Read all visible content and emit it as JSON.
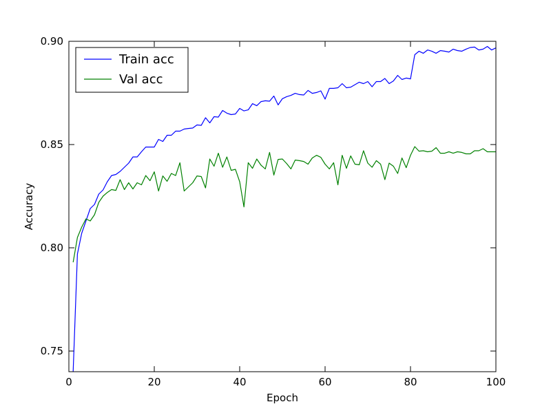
{
  "chart_data": {
    "type": "line",
    "title": "",
    "xlabel": "Epoch",
    "ylabel": "Accuracy",
    "xlim": [
      0,
      100
    ],
    "ylim": [
      0.74,
      0.9
    ],
    "xticks": [
      0,
      20,
      40,
      60,
      80,
      100
    ],
    "yticks": [
      0.75,
      0.8,
      0.85,
      0.9
    ],
    "xtick_labels": [
      "0",
      "20",
      "40",
      "60",
      "80",
      "100"
    ],
    "ytick_labels": [
      "0.75",
      "0.80",
      "0.85",
      "0.90"
    ],
    "grid": false,
    "legend": "top-left",
    "x": [
      1,
      2,
      3,
      4,
      5,
      6,
      7,
      8,
      9,
      10,
      11,
      12,
      13,
      14,
      15,
      16,
      17,
      18,
      19,
      20,
      21,
      22,
      23,
      24,
      25,
      26,
      27,
      28,
      29,
      30,
      31,
      32,
      33,
      34,
      35,
      36,
      37,
      38,
      39,
      40,
      41,
      42,
      43,
      44,
      45,
      46,
      47,
      48,
      49,
      50,
      51,
      52,
      53,
      54,
      55,
      56,
      57,
      58,
      59,
      60,
      61,
      62,
      63,
      64,
      65,
      66,
      67,
      68,
      69,
      70,
      71,
      72,
      73,
      74,
      75,
      76,
      77,
      78,
      79,
      80,
      81,
      82,
      83,
      84,
      85,
      86,
      87,
      88,
      89,
      90,
      91,
      92,
      93,
      94,
      95,
      96,
      97,
      98,
      99,
      100
    ],
    "series": [
      {
        "name": "Train acc",
        "color": "#0000ff",
        "values": [
          0.74,
          0.797,
          0.807,
          0.813,
          0.819,
          0.821,
          0.826,
          0.828,
          0.832,
          0.835,
          0.8355,
          0.837,
          0.839,
          0.841,
          0.844,
          0.844,
          0.8465,
          0.8488,
          0.8488,
          0.8488,
          0.8525,
          0.8515,
          0.8545,
          0.8545,
          0.8565,
          0.8565,
          0.8575,
          0.8578,
          0.858,
          0.8595,
          0.8593,
          0.863,
          0.8605,
          0.8635,
          0.8633,
          0.8665,
          0.8652,
          0.8645,
          0.8648,
          0.8675,
          0.8663,
          0.8668,
          0.8698,
          0.8688,
          0.8708,
          0.8712,
          0.871,
          0.8735,
          0.8692,
          0.8722,
          0.8732,
          0.8738,
          0.8748,
          0.8742,
          0.874,
          0.8762,
          0.8748,
          0.8752,
          0.876,
          0.872,
          0.8772,
          0.8772,
          0.8775,
          0.8795,
          0.8775,
          0.8778,
          0.879,
          0.8802,
          0.8795,
          0.8805,
          0.878,
          0.8805,
          0.8805,
          0.882,
          0.8795,
          0.8808,
          0.8835,
          0.8815,
          0.8822,
          0.8818,
          0.8935,
          0.8952,
          0.8942,
          0.8958,
          0.8952,
          0.8942,
          0.8955,
          0.8952,
          0.8948,
          0.8962,
          0.8955,
          0.8952,
          0.8962,
          0.897,
          0.8972,
          0.8958,
          0.8962,
          0.8975,
          0.8958,
          0.8968
        ]
      },
      {
        "name": "Val acc",
        "color": "#008000",
        "values": [
          0.793,
          0.805,
          0.81,
          0.814,
          0.813,
          0.816,
          0.822,
          0.825,
          0.8268,
          0.8282,
          0.8278,
          0.833,
          0.8282,
          0.8315,
          0.8285,
          0.8315,
          0.8305,
          0.835,
          0.8325,
          0.8368,
          0.8275,
          0.8348,
          0.8322,
          0.836,
          0.835,
          0.8412,
          0.8275,
          0.8295,
          0.8315,
          0.8348,
          0.8345,
          0.829,
          0.843,
          0.8395,
          0.8458,
          0.839,
          0.844,
          0.8375,
          0.838,
          0.832,
          0.8198,
          0.8412,
          0.8385,
          0.843,
          0.84,
          0.8382,
          0.8462,
          0.8352,
          0.8428,
          0.843,
          0.8408,
          0.8382,
          0.8425,
          0.8422,
          0.8418,
          0.8405,
          0.8435,
          0.8448,
          0.8438,
          0.8405,
          0.8382,
          0.8412,
          0.8305,
          0.8448,
          0.8385,
          0.8445,
          0.8405,
          0.8402,
          0.847,
          0.841,
          0.839,
          0.8422,
          0.8405,
          0.833,
          0.841,
          0.8395,
          0.836,
          0.8435,
          0.8388,
          0.8448,
          0.849,
          0.8468,
          0.847,
          0.8465,
          0.8468,
          0.8485,
          0.8458,
          0.8458,
          0.8465,
          0.8458,
          0.8465,
          0.8462,
          0.8455,
          0.8455,
          0.847,
          0.847,
          0.848,
          0.8465,
          0.8465,
          0.8465
        ]
      }
    ]
  }
}
